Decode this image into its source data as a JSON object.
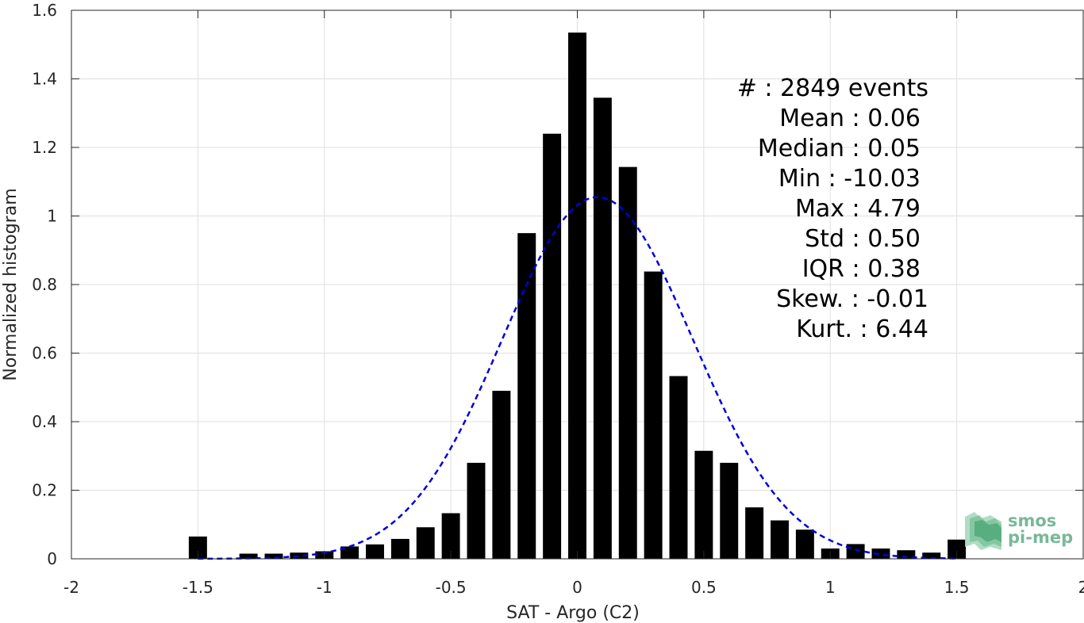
{
  "chart_data": {
    "type": "bar",
    "xlabel": "SAT - Argo (C2)",
    "ylabel": "Normalized histogram",
    "xlim": [
      -2,
      2
    ],
    "ylim": [
      0,
      1.6
    ],
    "grid": true,
    "x_ticks": [
      -2,
      -1.5,
      -1,
      -0.5,
      0,
      0.5,
      1,
      1.5,
      2
    ],
    "x_tick_labels": [
      "-2",
      "-1.5",
      "-1",
      "-0.5",
      "0",
      "0.5",
      "1",
      "1.5",
      "2"
    ],
    "y_ticks": [
      0,
      0.2,
      0.4,
      0.6,
      0.8,
      1,
      1.2,
      1.4,
      1.6
    ],
    "y_tick_labels": [
      "0",
      "0.2",
      "0.4",
      "0.6",
      "0.8",
      "1",
      "1.2",
      "1.4",
      "1.6"
    ],
    "bar_color": "#000000",
    "bars": {
      "x": [
        -1.5,
        -1.3,
        -1.2,
        -1.1,
        -1.0,
        -0.9,
        -0.8,
        -0.7,
        -0.6,
        -0.5,
        -0.4,
        -0.3,
        -0.2,
        -0.1,
        0.0,
        0.1,
        0.2,
        0.3,
        0.4,
        0.5,
        0.6,
        0.7,
        0.8,
        0.9,
        1.0,
        1.1,
        1.2,
        1.3,
        1.4,
        1.5
      ],
      "values": [
        0.065,
        0.015,
        0.015,
        0.018,
        0.022,
        0.036,
        0.042,
        0.058,
        0.092,
        0.133,
        0.28,
        0.49,
        0.95,
        1.24,
        1.535,
        1.345,
        1.143,
        0.838,
        0.533,
        0.315,
        0.28,
        0.15,
        0.112,
        0.085,
        0.03,
        0.043,
        0.03,
        0.025,
        0.018,
        0.056
      ]
    },
    "gaussian_fit": {
      "style": "dashed",
      "color": "#0000dd",
      "mean": 0.08,
      "std": 0.377,
      "peak": 1.055,
      "x_range": [
        -1.5,
        1.5
      ]
    },
    "stats_text": {
      "count": "#  : 2849 events",
      "mean": "Mean : 0.06",
      "median": "Median : 0.05",
      "min": "Min : -10.03",
      "max": "Max : 4.79",
      "std": "Std : 0.50",
      "iqr": "IQR : 0.38",
      "skew": "Skew. : -0.01",
      "kurt": "Kurt. : 6.44"
    }
  },
  "logo": {
    "line1": "smos",
    "line2": "pi-mep",
    "color": "#78b898"
  }
}
